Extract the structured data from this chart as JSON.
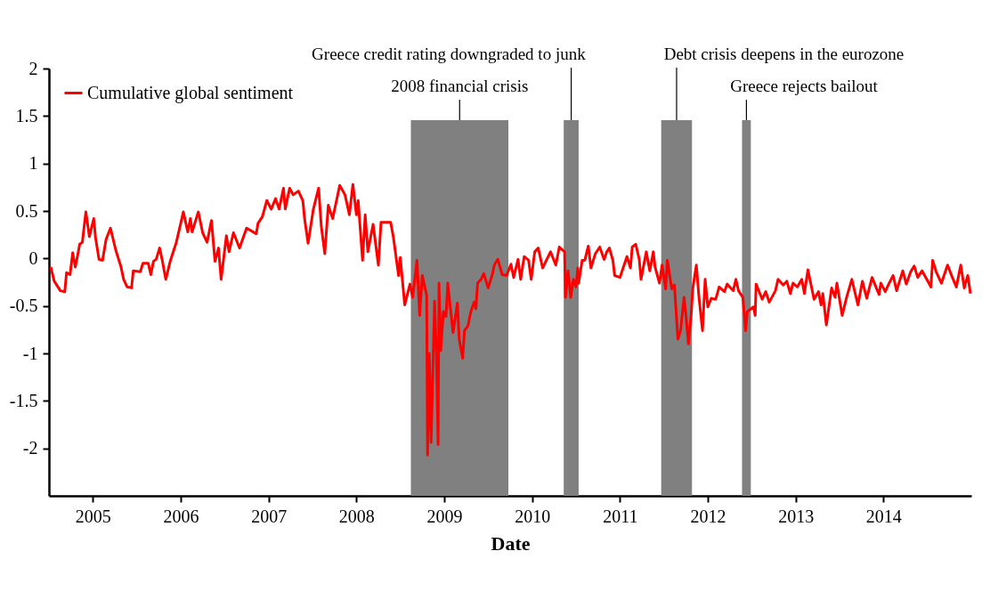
{
  "chart_data": {
    "type": "line",
    "xlabel": "Date",
    "legend": "top left",
    "xlim": [
      2004.5,
      2015
    ],
    "xticks": [
      2005,
      2006,
      2007,
      2008,
      2009,
      2010,
      2011,
      2012,
      2013,
      2014
    ],
    "ylim": [
      -2.5,
      2
    ],
    "yticks": [
      -2,
      -1.5,
      -1,
      -0.5,
      0,
      0.5,
      1,
      1.5,
      2
    ],
    "series": [
      {
        "name": "Cumulative global sentiment",
        "color": "#ff0000",
        "x": [
          2004.52,
          2004.56,
          2004.63,
          2004.68,
          2004.7,
          2004.74,
          2004.77,
          2004.8,
          2004.83,
          2004.85,
          2004.88,
          2004.92,
          2004.96,
          2005.01,
          2005.03,
          2005.07,
          2005.11,
          2005.15,
          2005.2,
          2005.26,
          2005.32,
          2005.35,
          2005.39,
          2005.44,
          2005.46,
          2005.54,
          2005.57,
          2005.63,
          2005.66,
          2005.69,
          2005.72,
          2005.76,
          2005.79,
          2005.83,
          2005.88,
          2005.95,
          2006.03,
          2006.08,
          2006.11,
          2006.13,
          2006.2,
          2006.25,
          2006.3,
          2006.35,
          2006.39,
          2006.43,
          2006.46,
          2006.52,
          2006.55,
          2006.6,
          2006.67,
          2006.75,
          2006.86,
          2006.88,
          2006.93,
          2006.98,
          2007.03,
          2007.08,
          2007.12,
          2007.17,
          2007.19,
          2007.24,
          2007.28,
          2007.34,
          2007.39,
          2007.41,
          2007.45,
          2007.51,
          2007.57,
          2007.6,
          2007.64,
          2007.68,
          2007.73,
          2007.81,
          2007.87,
          2007.92,
          2007.96,
          2008.0,
          2008.02,
          2008.07,
          2008.1,
          2008.13,
          2008.19,
          2008.25,
          2008.28,
          2008.39,
          2008.42,
          2008.48,
          2008.5,
          2008.55,
          2008.61,
          2008.64,
          2008.69,
          2008.72,
          2008.75,
          2008.8,
          2008.81,
          2008.83,
          2008.85,
          2008.89,
          2008.91,
          2008.93,
          2008.94,
          2008.96,
          2008.99,
          2009.02,
          2009.04,
          2009.1,
          2009.15,
          2009.17,
          2009.21,
          2009.23,
          2009.27,
          2009.3,
          2009.34,
          2009.36,
          2009.38,
          2009.42,
          2009.45,
          2009.5,
          2009.55,
          2009.57,
          2009.61,
          2009.66,
          2009.71,
          2009.76,
          2009.79,
          2009.84,
          2009.87,
          2009.91,
          2009.96,
          2009.99,
          2010.03,
          2010.07,
          2010.12,
          2010.21,
          2010.27,
          2010.31,
          2010.37,
          2010.38,
          2010.41,
          2010.44,
          2010.47,
          2010.5,
          2010.52,
          2010.53,
          2010.57,
          2010.6,
          2010.64,
          2010.67,
          2010.72,
          2010.77,
          2010.82,
          2010.85,
          2010.88,
          2010.92,
          2010.94,
          2011.0,
          2011.08,
          2011.12,
          2011.14,
          2011.18,
          2011.22,
          2011.24,
          2011.3,
          2011.34,
          2011.38,
          2011.4,
          2011.45,
          2011.48,
          2011.52,
          2011.54,
          2011.59,
          2011.62,
          2011.66,
          2011.69,
          2011.73,
          2011.75,
          2011.78,
          2011.81,
          2011.83,
          2011.87,
          2011.9,
          2011.94,
          2011.97,
          2012.0,
          2012.04,
          2012.09,
          2012.13,
          2012.19,
          2012.22,
          2012.29,
          2012.32,
          2012.35,
          2012.4,
          2012.43,
          2012.45,
          2012.52,
          2012.54,
          2012.55,
          2012.62,
          2012.66,
          2012.7,
          2012.77,
          2012.8,
          2012.86,
          2012.9,
          2012.94,
          2012.97,
          2013.02,
          2013.07,
          2013.1,
          2013.14,
          2013.21,
          2013.26,
          2013.29,
          2013.31,
          2013.35,
          2013.41,
          2013.45,
          2013.47,
          2013.53,
          2013.58,
          2013.64,
          2013.71,
          2013.76,
          2013.81,
          2013.87,
          2013.95,
          2013.97,
          2014.02,
          2014.06,
          2014.11,
          2014.15,
          2014.22,
          2014.26,
          2014.31,
          2014.35,
          2014.39,
          2014.44,
          2014.54,
          2014.56,
          2014.6,
          2014.66,
          2014.73,
          2014.78,
          2014.83,
          2014.88,
          2014.92,
          2014.96,
          2014.99
        ],
        "values": [
          -0.09,
          -0.24,
          -0.34,
          -0.35,
          -0.15,
          -0.17,
          0.06,
          -0.09,
          0.05,
          0.15,
          0.17,
          0.49,
          0.23,
          0.42,
          0.22,
          -0.01,
          -0.02,
          0.2,
          0.32,
          0.09,
          -0.09,
          -0.22,
          -0.3,
          -0.31,
          -0.13,
          -0.14,
          -0.05,
          -0.05,
          -0.17,
          -0.03,
          -0.01,
          0.11,
          -0.02,
          -0.22,
          -0.03,
          0.17,
          0.49,
          0.28,
          0.42,
          0.28,
          0.49,
          0.27,
          0.17,
          0.4,
          -0.03,
          0.11,
          -0.22,
          0.24,
          0.07,
          0.27,
          0.11,
          0.32,
          0.26,
          0.37,
          0.44,
          0.61,
          0.52,
          0.63,
          0.52,
          0.74,
          0.52,
          0.74,
          0.67,
          0.71,
          0.61,
          0.42,
          0.16,
          0.52,
          0.74,
          0.34,
          0.05,
          0.56,
          0.42,
          0.77,
          0.67,
          0.46,
          0.78,
          0.46,
          0.61,
          -0.02,
          0.46,
          0.07,
          0.36,
          -0.07,
          0.38,
          0.38,
          0.23,
          -0.18,
          0.01,
          -0.49,
          -0.27,
          -0.41,
          -0.02,
          -0.6,
          -0.18,
          -0.39,
          -2.07,
          -1.0,
          -1.94,
          -0.45,
          -1.0,
          -1.96,
          -0.26,
          -0.97,
          -0.56,
          -0.61,
          -0.26,
          -0.78,
          -0.47,
          -0.85,
          -1.05,
          -0.76,
          -0.71,
          -0.57,
          -0.46,
          -0.53,
          -0.26,
          -0.22,
          -0.16,
          -0.31,
          -0.16,
          -0.07,
          -0.01,
          -0.17,
          -0.18,
          -0.06,
          -0.2,
          -0.01,
          -0.22,
          0.02,
          -0.02,
          -0.22,
          0.07,
          0.11,
          -0.1,
          0.07,
          -0.07,
          0.12,
          0.07,
          -0.41,
          -0.13,
          -0.41,
          -0.22,
          -0.3,
          -0.1,
          -0.26,
          -0.02,
          -0.02,
          0.13,
          -0.1,
          0.05,
          0.12,
          -0.01,
          0.07,
          0.11,
          -0.02,
          -0.18,
          -0.2,
          0.02,
          -0.1,
          0.12,
          0.15,
          -0.01,
          -0.22,
          0.07,
          -0.13,
          0.07,
          -0.09,
          -0.26,
          -0.07,
          -0.32,
          -0.02,
          -0.32,
          -0.28,
          -0.85,
          -0.76,
          -0.41,
          -0.59,
          -0.9,
          -0.6,
          -0.31,
          -0.07,
          -0.41,
          -0.76,
          -0.22,
          -0.51,
          -0.42,
          -0.43,
          -0.3,
          -0.35,
          -0.27,
          -0.34,
          -0.22,
          -0.34,
          -0.41,
          -0.76,
          -0.56,
          -0.51,
          -0.6,
          -0.27,
          -0.43,
          -0.35,
          -0.46,
          -0.34,
          -0.22,
          -0.28,
          -0.24,
          -0.37,
          -0.26,
          -0.3,
          -0.22,
          -0.37,
          -0.12,
          -0.43,
          -0.35,
          -0.49,
          -0.37,
          -0.7,
          -0.31,
          -0.41,
          -0.26,
          -0.6,
          -0.41,
          -0.22,
          -0.49,
          -0.24,
          -0.42,
          -0.2,
          -0.38,
          -0.26,
          -0.35,
          -0.27,
          -0.18,
          -0.34,
          -0.13,
          -0.27,
          -0.14,
          -0.08,
          -0.2,
          -0.13,
          -0.3,
          -0.02,
          -0.14,
          -0.26,
          -0.07,
          -0.19,
          -0.3,
          -0.07,
          -0.31,
          -0.18,
          -0.37
        ]
      }
    ],
    "bands": [
      {
        "axis": "x",
        "from": 2008.62,
        "to": 2009.73,
        "label": "2008 financial crisis",
        "color": "#808080"
      },
      {
        "axis": "x",
        "from": 2010.36,
        "to": 2010.53,
        "label": "Greece credit rating downgraded to junk",
        "color": "#808080"
      },
      {
        "axis": "x",
        "from": 2011.47,
        "to": 2011.82,
        "label": "Debt crisis deepens in the eurozone",
        "color": "#808080"
      },
      {
        "axis": "x",
        "from": 2012.39,
        "to": 2012.49,
        "label": "Greece rejects bailout",
        "color": "#808080"
      }
    ]
  }
}
